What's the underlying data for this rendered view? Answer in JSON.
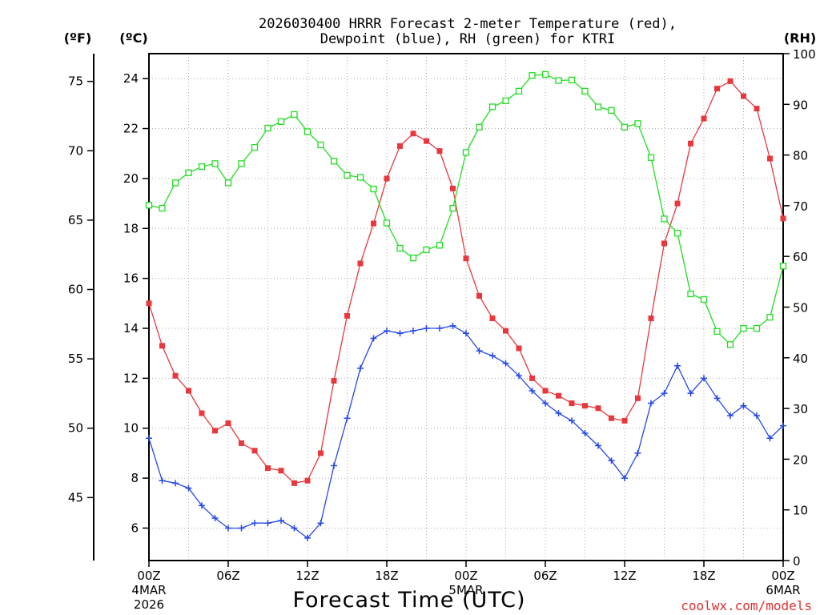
{
  "chart_data": {
    "type": "line",
    "title_lines": [
      "2026030400 HRRR Forecast 2-meter Temperature (red),",
      "Dewpoint (blue), RH (green) for KTRI"
    ],
    "xlabel": "Forecast Time (UTC)",
    "credit": "coolwx.com/models",
    "units": {
      "fahrenheit": "(ºF)",
      "celsius": "(ºC)",
      "rh": "(RH)"
    },
    "forecast_hours": [
      0,
      1,
      2,
      3,
      4,
      5,
      6,
      7,
      8,
      9,
      10,
      11,
      12,
      13,
      14,
      15,
      16,
      17,
      18,
      19,
      20,
      21,
      22,
      23,
      24,
      25,
      26,
      27,
      28,
      29,
      30,
      31,
      32,
      33,
      34,
      35,
      36,
      37,
      38,
      39,
      40,
      41,
      42,
      43,
      44,
      45,
      46,
      47,
      48
    ],
    "x_ticks": [
      {
        "hour": 0,
        "label": "00Z",
        "label2": "4MAR",
        "label3": "2026"
      },
      {
        "hour": 6,
        "label": "06Z",
        "label2": "",
        "label3": ""
      },
      {
        "hour": 12,
        "label": "12Z",
        "label2": "",
        "label3": ""
      },
      {
        "hour": 18,
        "label": "18Z",
        "label2": "",
        "label3": ""
      },
      {
        "hour": 24,
        "label": "00Z",
        "label2": "5MAR",
        "label3": ""
      },
      {
        "hour": 30,
        "label": "06Z",
        "label2": "",
        "label3": ""
      },
      {
        "hour": 36,
        "label": "12Z",
        "label2": "",
        "label3": ""
      },
      {
        "hour": 42,
        "label": "18Z",
        "label2": "",
        "label3": ""
      },
      {
        "hour": 48,
        "label": "00Z",
        "label2": "6MAR",
        "label3": ""
      }
    ],
    "celsius_axis": {
      "ylim": [
        4.7,
        25.0
      ],
      "ticks": [
        "6",
        "8",
        "10",
        "12",
        "14",
        "16",
        "18",
        "20",
        "22",
        "24"
      ]
    },
    "fahrenheit_axis": {
      "ticks": [
        "45",
        "50",
        "55",
        "60",
        "65",
        "70",
        "75"
      ]
    },
    "rh_axis": {
      "ylim": [
        0,
        100
      ],
      "ticks": [
        "0",
        "10",
        "20",
        "30",
        "40",
        "50",
        "60",
        "70",
        "80",
        "90",
        "100"
      ]
    },
    "grid": true,
    "series": [
      {
        "name": "Temperature",
        "color": "#e8383d",
        "marker": "filled-square",
        "axis": "celsius",
        "values": [
          15.0,
          13.3,
          12.1,
          11.5,
          10.6,
          9.9,
          10.2,
          9.4,
          9.1,
          8.4,
          8.3,
          7.8,
          7.9,
          9.0,
          11.9,
          14.5,
          16.6,
          18.2,
          20.0,
          21.3,
          21.8,
          21.5,
          21.1,
          19.6,
          16.8,
          15.3,
          14.4,
          13.9,
          13.2,
          12.0,
          11.5,
          11.3,
          11.0,
          10.9,
          10.8,
          10.4,
          10.3,
          11.2,
          14.4,
          17.4,
          19.0,
          21.4,
          22.4,
          23.6,
          23.9,
          23.3,
          22.8,
          20.8,
          18.4
        ]
      },
      {
        "name": "Dewpoint",
        "color": "#2448e8",
        "marker": "plus",
        "axis": "celsius",
        "values": [
          9.6,
          7.9,
          7.8,
          7.6,
          6.9,
          6.4,
          6.0,
          6.0,
          6.2,
          6.2,
          6.3,
          6.0,
          5.6,
          6.2,
          8.5,
          10.4,
          12.4,
          13.6,
          13.9,
          13.8,
          13.9,
          14.0,
          14.0,
          14.1,
          13.8,
          13.1,
          12.9,
          12.6,
          12.1,
          11.5,
          11.0,
          10.6,
          10.3,
          9.8,
          9.3,
          8.7,
          8.0,
          9.0,
          11.0,
          11.4,
          12.5,
          11.4,
          12.0,
          11.2,
          10.5,
          10.9,
          10.5,
          9.6,
          10.1
        ]
      },
      {
        "name": "RH",
        "color": "#22dd22",
        "marker": "open-square",
        "axis": "rh",
        "values": [
          70.1,
          69.5,
          74.5,
          76.5,
          77.7,
          78.3,
          74.5,
          78.3,
          81.5,
          85.3,
          86.6,
          88.0,
          84.6,
          82.0,
          78.8,
          76.0,
          75.6,
          73.3,
          66.6,
          61.6,
          59.7,
          61.3,
          62.2,
          69.5,
          80.5,
          85.5,
          89.5,
          90.7,
          92.6,
          95.7,
          95.9,
          94.7,
          94.8,
          92.6,
          89.5,
          88.8,
          85.5,
          86.2,
          79.5,
          67.4,
          64.6,
          52.6,
          51.5,
          45.2,
          42.6,
          45.8,
          45.8,
          48.0,
          58.1
        ]
      }
    ]
  }
}
